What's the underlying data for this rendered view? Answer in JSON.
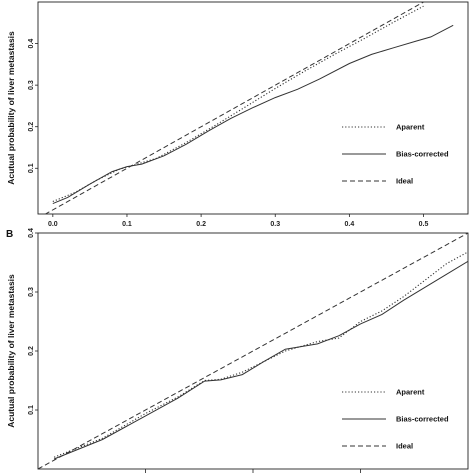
{
  "chart_data": [
    {
      "panel": "",
      "type": "line",
      "title": "",
      "xlabel": "",
      "ylabel": "Acutual probability of liver metastasis",
      "xlim": [
        -0.02,
        0.56
      ],
      "ylim": [
        -0.01,
        0.5
      ],
      "grid": false,
      "legend_position": "bottom-right",
      "x_ticks": [
        0.0,
        0.1,
        0.2,
        0.3,
        0.4,
        0.5
      ],
      "x_tick_labels": [
        "0.0",
        "0.1",
        "0.2",
        "0.3",
        "0.4",
        "0.5"
      ],
      "y_ticks": [
        0.1,
        0.2,
        0.3,
        0.4
      ],
      "y_tick_labels": [
        "0.1",
        "0.2",
        "0.3",
        "0.4"
      ],
      "series": [
        {
          "name": "Apparent",
          "legend_label": "Aparent",
          "style": "dotted",
          "color": "#333333",
          "points": [
            [
              0.0,
              0.02
            ],
            [
              0.03,
              0.042
            ],
            [
              0.06,
              0.072
            ],
            [
              0.09,
              0.098
            ],
            [
              0.11,
              0.108
            ],
            [
              0.14,
              0.124
            ],
            [
              0.18,
              0.162
            ],
            [
              0.22,
              0.204
            ],
            [
              0.26,
              0.248
            ],
            [
              0.3,
              0.292
            ],
            [
              0.34,
              0.334
            ],
            [
              0.38,
              0.374
            ],
            [
              0.42,
              0.412
            ],
            [
              0.46,
              0.452
            ],
            [
              0.5,
              0.49
            ]
          ]
        },
        {
          "name": "Bias-corrected",
          "legend_label": "Bias-corrected",
          "style": "solid",
          "color": "#333333",
          "points": [
            [
              0.0,
              0.015
            ],
            [
              0.02,
              0.03
            ],
            [
              0.05,
              0.062
            ],
            [
              0.08,
              0.092
            ],
            [
              0.1,
              0.104
            ],
            [
              0.12,
              0.11
            ],
            [
              0.15,
              0.13
            ],
            [
              0.18,
              0.158
            ],
            [
              0.21,
              0.19
            ],
            [
              0.24,
              0.22
            ],
            [
              0.27,
              0.246
            ],
            [
              0.3,
              0.27
            ],
            [
              0.33,
              0.29
            ],
            [
              0.36,
              0.315
            ],
            [
              0.4,
              0.352
            ],
            [
              0.43,
              0.374
            ],
            [
              0.46,
              0.39
            ],
            [
              0.49,
              0.406
            ],
            [
              0.51,
              0.416
            ],
            [
              0.54,
              0.444
            ]
          ]
        },
        {
          "name": "Ideal",
          "legend_label": "Ideal",
          "style": "dashed",
          "color": "#333333",
          "points": [
            [
              -0.02,
              -0.02
            ],
            [
              0.54,
              0.54
            ]
          ]
        }
      ]
    },
    {
      "panel": "B",
      "type": "line",
      "title": "",
      "xlabel": "",
      "ylabel": "Acutual probability of liver metastasis",
      "xlim": [
        0.0,
        0.4
      ],
      "ylim": [
        0.0,
        0.4
      ],
      "grid": false,
      "legend_position": "bottom-right",
      "x_ticks": [],
      "x_tick_labels": [],
      "y_ticks": [
        0.1,
        0.2,
        0.3,
        0.4
      ],
      "y_tick_labels": [
        "0.1",
        "0.2",
        "0.3",
        "0.4"
      ],
      "series": [
        {
          "name": "Apparent",
          "legend_label": "Aparent",
          "style": "dotted",
          "color": "#333333",
          "points": [
            [
              0.015,
              0.02
            ],
            [
              0.06,
              0.052
            ],
            [
              0.1,
              0.094
            ],
            [
              0.13,
              0.122
            ],
            [
              0.155,
              0.15
            ],
            [
              0.17,
              0.152
            ],
            [
              0.19,
              0.164
            ],
            [
              0.21,
              0.182
            ],
            [
              0.23,
              0.2
            ],
            [
              0.26,
              0.216
            ],
            [
              0.28,
              0.222
            ],
            [
              0.3,
              0.25
            ],
            [
              0.32,
              0.268
            ],
            [
              0.34,
              0.292
            ],
            [
              0.36,
              0.32
            ],
            [
              0.38,
              0.348
            ],
            [
              0.4,
              0.368
            ],
            [
              0.42,
              0.388
            ]
          ]
        },
        {
          "name": "Bias-corrected",
          "legend_label": "Bias-corrected",
          "style": "solid",
          "color": "#333333",
          "points": [
            [
              0.015,
              0.017
            ],
            [
              0.06,
              0.05
            ],
            [
              0.1,
              0.09
            ],
            [
              0.13,
              0.12
            ],
            [
              0.155,
              0.149
            ],
            [
              0.17,
              0.151
            ],
            [
              0.19,
              0.16
            ],
            [
              0.21,
              0.182
            ],
            [
              0.23,
              0.203
            ],
            [
              0.26,
              0.212
            ],
            [
              0.28,
              0.226
            ],
            [
              0.3,
              0.246
            ],
            [
              0.32,
              0.262
            ],
            [
              0.34,
              0.286
            ],
            [
              0.36,
              0.308
            ],
            [
              0.38,
              0.33
            ],
            [
              0.4,
              0.352
            ],
            [
              0.41,
              0.357
            ]
          ]
        },
        {
          "name": "Ideal",
          "legend_label": "Ideal",
          "style": "dashed",
          "color": "#333333",
          "points": [
            [
              0.0,
              0.0
            ],
            [
              0.44,
              0.44
            ]
          ]
        }
      ]
    }
  ]
}
